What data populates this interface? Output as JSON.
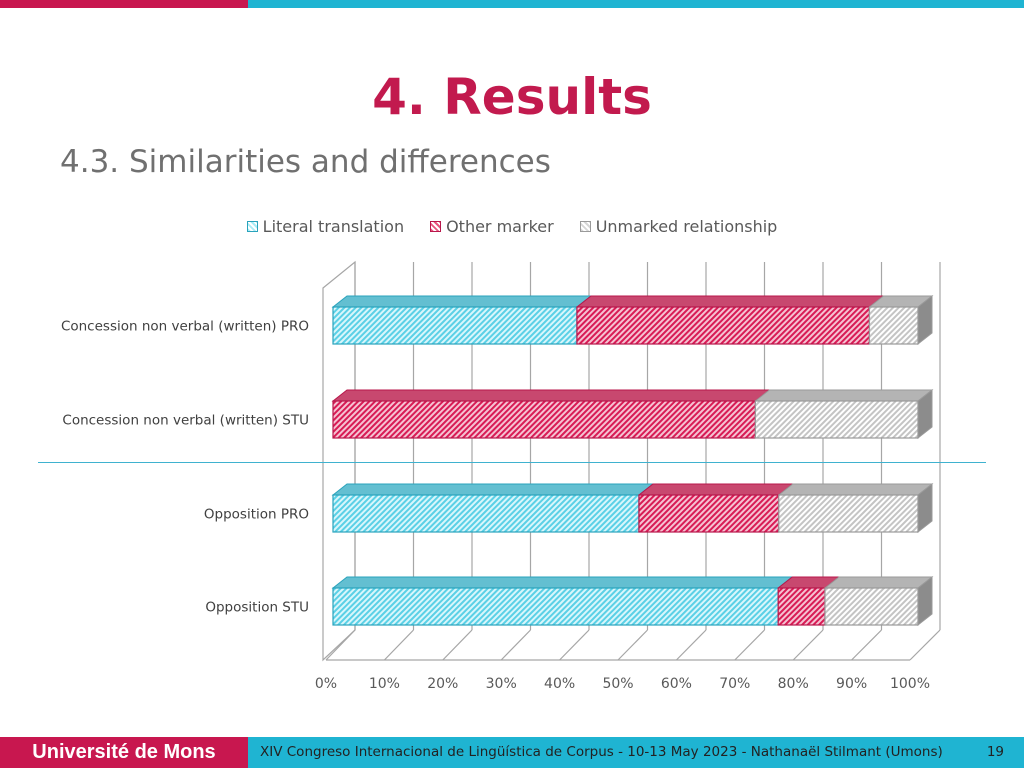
{
  "slide": {
    "title": "4. Results",
    "subtitle": "4.3. Similarities and differences"
  },
  "footer": {
    "university": "Université de Mons",
    "conference": "XIV Congreso Internacional de Lingüística de Corpus - 10-13 May 2023 - Nathanaël Stilmant (Umons)",
    "page_number": "19"
  },
  "colors": {
    "header_left": "#c8174f",
    "header_right": "#1fb4d2",
    "title": "#c21a4e",
    "subtitle": "#707070"
  },
  "chart_data": {
    "type": "bar",
    "orientation": "horizontal",
    "stacked": "percent",
    "style": "3d",
    "title": "",
    "xlabel": "",
    "ylabel": "",
    "xlim": [
      0,
      100
    ],
    "x_ticks": [
      "0%",
      "10%",
      "20%",
      "30%",
      "40%",
      "50%",
      "60%",
      "70%",
      "80%",
      "90%",
      "100%"
    ],
    "legend": {
      "position": "top"
    },
    "grid": {
      "vertical": true
    },
    "categories": [
      "Concession non verbal (written) PRO",
      "Concession non verbal (written) STU",
      "Opposition PRO",
      "Opposition STU"
    ],
    "series": [
      {
        "name": "Literal translation",
        "values": [
          41.7,
          0,
          52.3,
          76.1
        ],
        "color": "#5ad0e6"
      },
      {
        "name": "Other marker",
        "values": [
          50,
          72.2,
          23.9,
          8
        ],
        "color": "#d81b55"
      },
      {
        "name": "Unmarked relationship",
        "values": [
          8.3,
          27.8,
          23.8,
          15.9
        ],
        "color": "#bdbdbd"
      }
    ]
  }
}
